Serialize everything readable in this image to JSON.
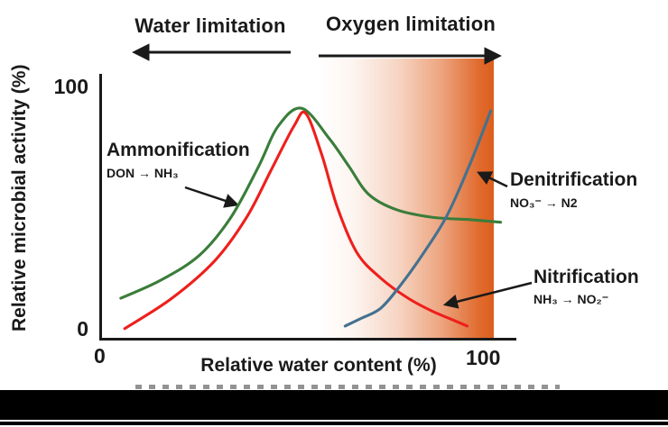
{
  "figure": {
    "top_labels": {
      "water": "Water limitation",
      "oxygen": "Oxygen limitation"
    },
    "y_axis": {
      "label": "Relative microbial activity (%)",
      "tick_top": "100",
      "tick_bottom": "0"
    },
    "x_axis": {
      "label": "Relative water content (%)",
      "tick_left": "0",
      "tick_right": "100"
    },
    "annotations": {
      "ammonification": {
        "label": "Ammonification",
        "formula": "DON → NH₃"
      },
      "denitrification": {
        "label": "Denitrification",
        "formula": "NO₃⁻ → N2"
      },
      "nitrification": {
        "label": "Nitrification",
        "formula": "NH₃ → NO₂⁻"
      }
    },
    "colors": {
      "ammonification": "#3a7d3a",
      "nitrification": "#ee1f1c",
      "denitrification": "#45718f",
      "oxygen_gradient": "#dc5f1e",
      "axis": "#1a1a1a"
    }
  },
  "chart_data": {
    "type": "line",
    "title": "",
    "xlabel": "Relative water content (%)",
    "ylabel": "Relative microbial activity (%)",
    "xlim": [
      0,
      100
    ],
    "ylim": [
      0,
      100
    ],
    "grid": false,
    "legend_position": "none",
    "series": [
      {
        "name": "Ammonification (DON → NH₃)",
        "color": "#3a7d3a",
        "x": [
          5,
          15,
          25,
          33,
          40,
          45,
          51,
          58,
          63,
          68,
          75,
          84,
          94,
          101.5
        ],
        "y": [
          16,
          23,
          33,
          48,
          68,
          84,
          91,
          79,
          68,
          57,
          51,
          48,
          47,
          46
        ]
      },
      {
        "name": "Nitrification (NH₃ → NO₂⁻)",
        "color": "#ee1f1c",
        "x": [
          6,
          18,
          29,
          37,
          43,
          49,
          52,
          56,
          60,
          65,
          71,
          78,
          84,
          90,
          93
        ],
        "y": [
          4,
          16,
          31,
          48,
          66,
          84,
          89,
          73,
          52,
          34,
          24,
          16,
          11,
          7,
          5
        ]
      },
      {
        "name": "Denitrification (NO₃⁻ → N2)",
        "color": "#45718f",
        "x": [
          62,
          66,
          71,
          76,
          82,
          88,
          94,
          99
        ],
        "y": [
          5,
          8,
          12,
          21,
          34,
          49,
          70,
          90
        ]
      }
    ],
    "regions": [
      {
        "label": "Oxygen limitation",
        "x_start": 55,
        "x_end": 100,
        "style": "white-to-orange horizontal gradient"
      },
      {
        "label": "Water limitation",
        "x_start": 0,
        "x_end": 48,
        "style": "arrow pointing left above plot"
      }
    ],
    "annotations": [
      {
        "text": "Ammonification",
        "formula": "DON → NH₃",
        "arrow_points_to": [
          35,
          52
        ]
      },
      {
        "text": "Denitrification",
        "formula": "NO₃⁻ → N2",
        "arrow_points_to": [
          95,
          66
        ]
      },
      {
        "text": "Nitrification",
        "formula": "NH₃ → NO₂⁻",
        "arrow_points_to": [
          86,
          13
        ]
      }
    ]
  }
}
